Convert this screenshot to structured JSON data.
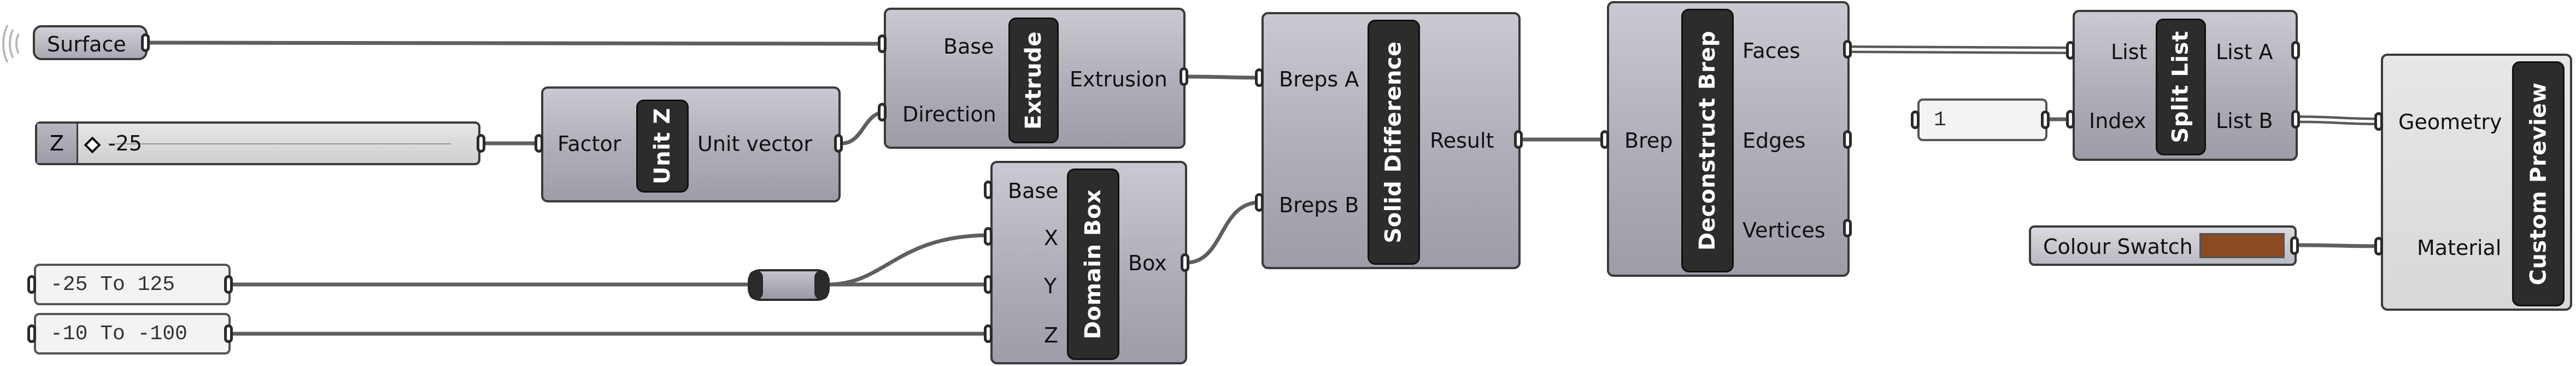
{
  "components": {
    "surface": {
      "label": "Surface"
    },
    "slider": {
      "name": "Z",
      "value": "-25"
    },
    "unit_z": {
      "title": "Unit Z",
      "inputs": [
        "Factor"
      ],
      "outputs": [
        "Unit vector"
      ]
    },
    "extrude": {
      "title": "Extrude",
      "inputs": [
        "Base",
        "Direction"
      ],
      "outputs": [
        "Extrusion"
      ]
    },
    "domain_box": {
      "title": "Domain Box",
      "inputs": [
        "Base",
        "X",
        "Y",
        "Z"
      ],
      "outputs": [
        "Box"
      ]
    },
    "solid_difference": {
      "title": "Solid Difference",
      "inputs": [
        "Breps A",
        "Breps B"
      ],
      "outputs": [
        "Result"
      ]
    },
    "deconstruct_brep": {
      "title": "Deconstruct Brep",
      "inputs": [
        "Brep"
      ],
      "outputs": [
        "Faces",
        "Edges",
        "Vertices"
      ]
    },
    "split_list": {
      "title": "Split List",
      "inputs": [
        "List",
        "Index"
      ],
      "outputs": [
        "List A",
        "List B"
      ]
    },
    "custom_preview": {
      "title": "Custom Preview",
      "inputs": [
        "Geometry",
        "Material"
      ]
    },
    "index_panel": {
      "value": "1"
    },
    "colour_swatch": {
      "label": "Colour Swatch",
      "color": "#8a4a22"
    },
    "panel_x": {
      "value": "-25 To 125"
    },
    "panel_y": {
      "value": "-10 To -100"
    }
  },
  "colors": {
    "component_fill": "#aeaeb8",
    "center_block": "#2c2c2c",
    "wire": "#5f5f5f",
    "panel_text": "#333333"
  }
}
